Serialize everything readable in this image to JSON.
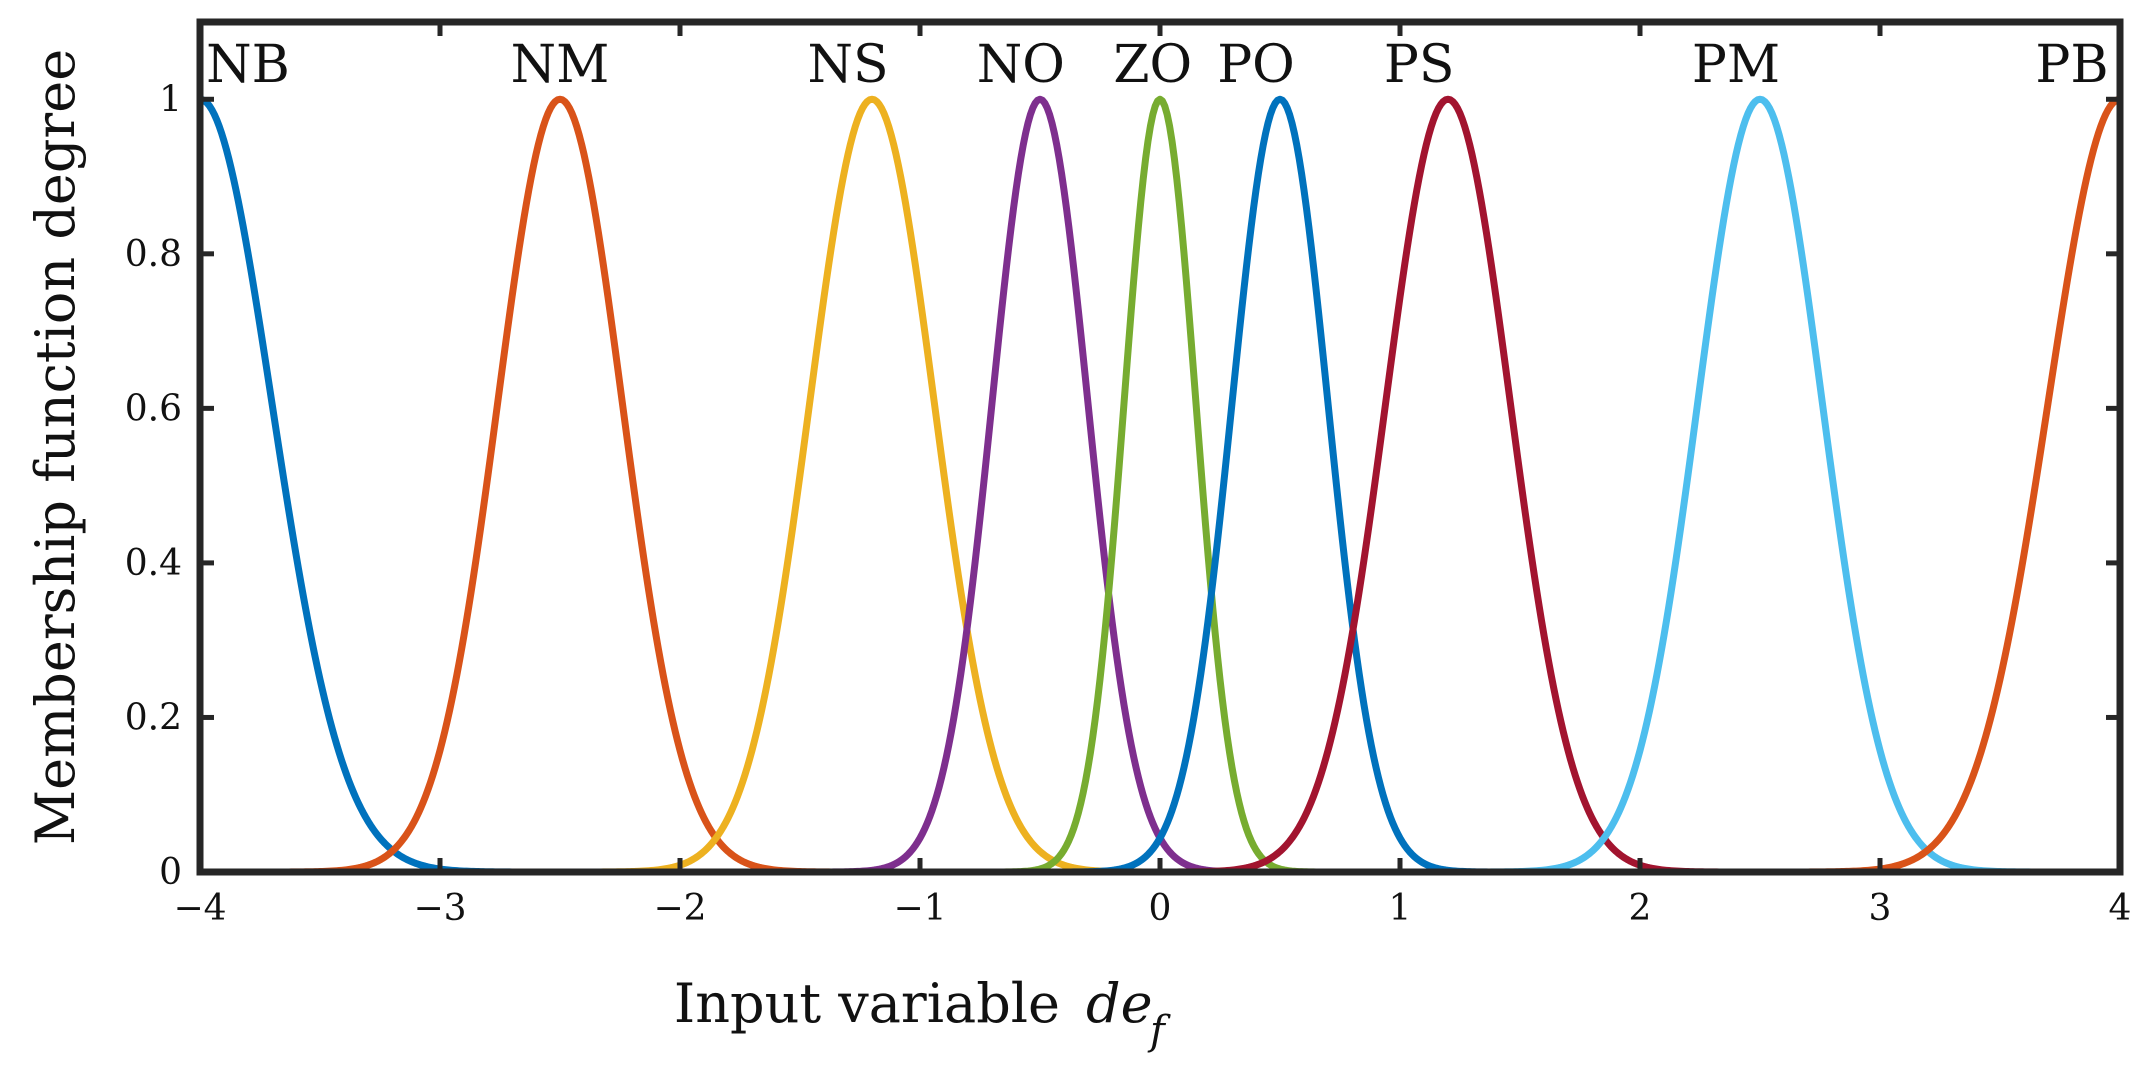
{
  "chart_data": {
    "type": "line",
    "title": "",
    "xlabel": "Input variable",
    "xlabel_symbol": "de",
    "xlabel_subscript": "f",
    "ylabel": "Membership function degree",
    "xlim": [
      -4,
      4
    ],
    "ylim": [
      0,
      1.1
    ],
    "grid": false,
    "legend": "none",
    "xticks": [
      -4,
      -3,
      -2,
      -1,
      0,
      1,
      2,
      3,
      4
    ],
    "xtick_labels": [
      "−4",
      "−3",
      "−2",
      "−1",
      "0",
      "1",
      "2",
      "3",
      "4"
    ],
    "yticks": [
      0,
      0.2,
      0.4,
      0.6,
      0.8,
      1
    ],
    "ytick_labels": [
      "0",
      "0.2",
      "0.4",
      "0.6",
      "0.8",
      "1"
    ],
    "series": [
      {
        "name": "NB",
        "shape": "gauss",
        "center": -4.0,
        "sigma": 0.3,
        "color": "#0072BD",
        "label_x": -3.8
      },
      {
        "name": "NM",
        "shape": "gauss",
        "center": -2.5,
        "sigma": 0.26,
        "color": "#D95319",
        "label_x": -2.5
      },
      {
        "name": "NS",
        "shape": "gauss",
        "center": -1.2,
        "sigma": 0.26,
        "color": "#EDB120",
        "label_x": -1.3
      },
      {
        "name": "NO",
        "shape": "gauss",
        "center": -0.5,
        "sigma": 0.2,
        "color": "#7E2F8E",
        "label_x": -0.58
      },
      {
        "name": "ZO",
        "shape": "gauss",
        "center": 0.0,
        "sigma": 0.15,
        "color": "#77AC30",
        "label_x": -0.03
      },
      {
        "name": "PO",
        "shape": "gauss",
        "center": 0.5,
        "sigma": 0.2,
        "color": "#0072BD",
        "label_x": 0.4
      },
      {
        "name": "PS",
        "shape": "gauss",
        "center": 1.2,
        "sigma": 0.26,
        "color": "#A2142F",
        "label_x": 1.08
      },
      {
        "name": "PM",
        "shape": "gauss",
        "center": 2.5,
        "sigma": 0.26,
        "color": "#4DBEEE",
        "label_x": 2.4
      },
      {
        "name": "PB",
        "shape": "gauss",
        "center": 4.0,
        "sigma": 0.3,
        "color": "#D95319",
        "label_x": 3.8
      }
    ]
  }
}
